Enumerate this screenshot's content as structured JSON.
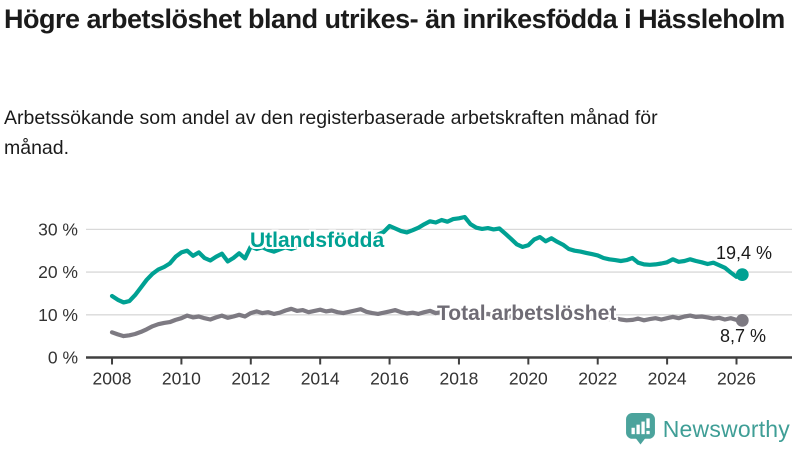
{
  "header": {
    "title": "Högre arbetslöshet bland utrikes- än inrikesfödda i Hässleholm",
    "subtitle": "Arbetssökande som andel av den registerbaserade arbetskraften månad för månad."
  },
  "chart_data": {
    "type": "line",
    "title": "Högre arbetslöshet bland utrikes- än inrikesfödda i Hässleholm",
    "subtitle": "Arbetssökande som andel av den registerbaserade arbetskraften månad för månad.",
    "grid": "horizontal",
    "legend_position": "inline-labels",
    "xlim": [
      2007.25,
      2027.6
    ],
    "ylim": [
      0,
      38
    ],
    "x_start": 2008.0,
    "x_step_years": 0.166667,
    "x_ticks": [
      {
        "label": "2008",
        "value": 2008
      },
      {
        "label": "2010",
        "value": 2010
      },
      {
        "label": "2012",
        "value": 2012
      },
      {
        "label": "2014",
        "value": 2014
      },
      {
        "label": "2016",
        "value": 2016
      },
      {
        "label": "2018",
        "value": 2018
      },
      {
        "label": "2020",
        "value": 2020
      },
      {
        "label": "2022",
        "value": 2022
      },
      {
        "label": "2024",
        "value": 2024
      },
      {
        "label": "2026",
        "value": 2026
      }
    ],
    "y_ticks": [
      {
        "label": "0 %",
        "value": 0
      },
      {
        "label": "10 %",
        "value": 10
      },
      {
        "label": "20 %",
        "value": 20
      },
      {
        "label": "30 %",
        "value": 30
      }
    ],
    "axis_color": "#404040",
    "grid_color": "#d9d9d9",
    "tick_text_color": "#333333",
    "series": [
      {
        "name": "Utlandsfödda",
        "color": "#00a193",
        "label_color": "#00a193",
        "end_label": "19,4 %",
        "end_value": 19.4,
        "values": [
          14.4,
          13.5,
          12.9,
          13.2,
          14.6,
          16.4,
          18.2,
          19.6,
          20.6,
          21.2,
          22.0,
          23.6,
          24.6,
          25.0,
          23.8,
          24.6,
          23.3,
          22.7,
          23.6,
          24.3,
          22.5,
          23.3,
          24.4,
          23.2,
          26.0,
          25.4,
          25.8,
          25.2,
          24.8,
          25.3,
          25.8,
          25.4,
          25.9,
          26.3,
          26.0,
          26.4,
          26.2,
          26.7,
          26.4,
          26.9,
          27.2,
          27.0,
          27.5,
          27.9,
          28.3,
          28.0,
          28.8,
          29.4,
          30.8,
          30.2,
          29.6,
          29.3,
          29.8,
          30.4,
          31.2,
          31.9,
          31.6,
          32.2,
          31.8,
          32.4,
          32.6,
          32.9,
          31.2,
          30.4,
          30.1,
          30.3,
          30.0,
          30.2,
          29.0,
          27.8,
          26.5,
          25.9,
          26.3,
          27.6,
          28.2,
          27.2,
          27.9,
          27.1,
          26.4,
          25.4,
          25.0,
          24.8,
          24.5,
          24.2,
          23.9,
          23.3,
          23.0,
          22.8,
          22.6,
          22.8,
          23.3,
          22.2,
          21.8,
          21.7,
          21.8,
          22.0,
          22.3,
          23.0,
          22.4,
          22.6,
          23.0,
          22.6,
          22.3,
          21.9,
          22.2,
          21.6,
          21.0,
          19.9,
          18.9,
          19.4
        ]
      },
      {
        "name": "Total arbetslöshet",
        "color": "#7d7a82",
        "label_color": "#6f6c75",
        "end_label": "8,7 %",
        "end_value": 8.7,
        "values": [
          5.9,
          5.4,
          5.0,
          5.2,
          5.5,
          6.0,
          6.6,
          7.3,
          7.8,
          8.1,
          8.3,
          8.8,
          9.2,
          9.8,
          9.4,
          9.6,
          9.2,
          8.9,
          9.4,
          9.8,
          9.3,
          9.6,
          10.0,
          9.6,
          10.4,
          10.8,
          10.4,
          10.6,
          10.2,
          10.5,
          11.0,
          11.4,
          10.9,
          11.1,
          10.6,
          10.9,
          11.2,
          10.8,
          11.0,
          10.6,
          10.4,
          10.7,
          11.0,
          11.3,
          10.7,
          10.4,
          10.2,
          10.5,
          10.8,
          11.1,
          10.6,
          10.3,
          10.5,
          10.2,
          10.6,
          10.9,
          10.4,
          10.6,
          10.2,
          10.4,
          10.6,
          10.2,
          10.0,
          10.3,
          10.0,
          10.2,
          9.9,
          10.2,
          9.8,
          9.6,
          9.8,
          9.6,
          9.9,
          10.6,
          11.0,
          10.7,
          10.9,
          10.5,
          10.2,
          10.0,
          9.7,
          9.9,
          9.5,
          9.3,
          9.5,
          9.2,
          9.0,
          9.2,
          8.9,
          8.7,
          8.8,
          9.1,
          8.7,
          9.0,
          9.2,
          8.9,
          9.2,
          9.5,
          9.2,
          9.6,
          9.8,
          9.5,
          9.6,
          9.4,
          9.1,
          9.3,
          8.9,
          9.2,
          8.8,
          8.7
        ]
      }
    ]
  },
  "footer": {
    "brand": "Newsworthy",
    "brand_color": "#3f9e96",
    "icon": "newsworthy-chart-bubble-icon",
    "icon_color": "#4ba39c"
  }
}
